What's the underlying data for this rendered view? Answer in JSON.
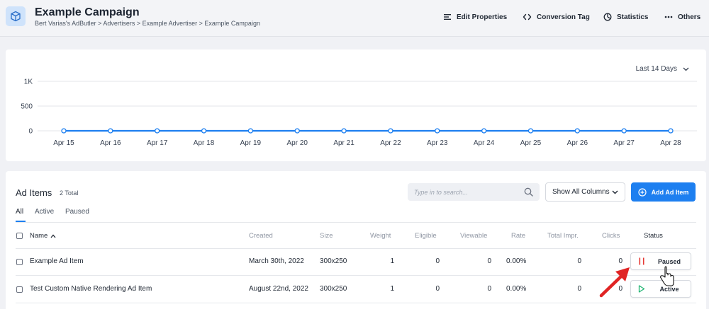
{
  "header": {
    "title": "Example Campaign",
    "breadcrumb": "Bert Varias's AdButler  >  Advertisers  >  Example Advertiser  >  Example Campaign",
    "actions": {
      "edit": "Edit Properties",
      "conversion": "Conversion Tag",
      "statistics": "Statistics",
      "others": "Others"
    }
  },
  "chart": {
    "range_label": "Last 14 Days"
  },
  "chart_data": {
    "type": "line",
    "x": [
      "Apr 15",
      "Apr 16",
      "Apr 17",
      "Apr 18",
      "Apr 19",
      "Apr 20",
      "Apr 21",
      "Apr 22",
      "Apr 23",
      "Apr 24",
      "Apr 25",
      "Apr 26",
      "Apr 27",
      "Apr 28"
    ],
    "series": [
      {
        "values": [
          0,
          0,
          0,
          0,
          0,
          0,
          0,
          0,
          0,
          0,
          0,
          0,
          0,
          0
        ]
      }
    ],
    "y_ticks": [
      {
        "value": 0,
        "label": "0"
      },
      {
        "value": 500,
        "label": "500"
      },
      {
        "value": 1000,
        "label": "1K"
      }
    ],
    "ylim": [
      0,
      1000
    ],
    "grid": true,
    "color": "#1d7ff0"
  },
  "table": {
    "title": "Ad Items",
    "total": "2 Total",
    "search_placeholder": "Type in to search...",
    "columns_select": "Show All Columns",
    "add_button": "Add Ad Item",
    "tabs": [
      "All",
      "Active",
      "Paused"
    ],
    "headers": {
      "name": "Name",
      "created": "Created",
      "size": "Size",
      "weight": "Weight",
      "eligible": "Eligible",
      "viewable": "Viewable",
      "rate": "Rate",
      "total_impr": "Total Impr.",
      "clicks": "Clicks",
      "status": "Status"
    },
    "rows": [
      {
        "name": "Example Ad Item",
        "created": "March 30th, 2022",
        "size": "300x250",
        "weight": "1",
        "eligible": "0",
        "viewable": "0",
        "rate": "0.00%",
        "total_impr": "0",
        "clicks": "0",
        "status": "Paused"
      },
      {
        "name": "Test Custom Native Rendering Ad Item",
        "created": "August 22nd, 2022",
        "size": "300x250",
        "weight": "1",
        "eligible": "0",
        "viewable": "0",
        "rate": "0.00%",
        "total_impr": "0",
        "clicks": "0",
        "status": "Active"
      }
    ]
  },
  "colors": {
    "accent": "#1d7ff0",
    "paused": "#e53935",
    "active": "#22b573",
    "annotation_arrow": "#e02424"
  }
}
